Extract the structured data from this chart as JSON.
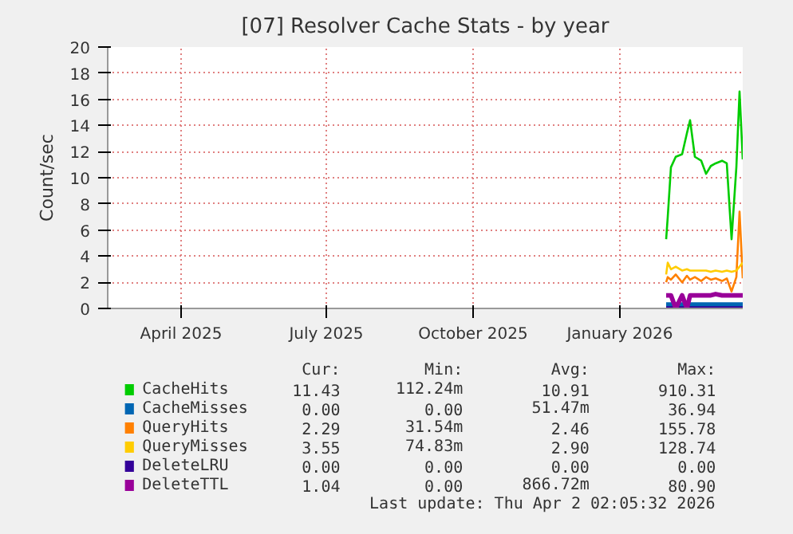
{
  "chart_data": {
    "type": "line",
    "title": "[07] Resolver Cache Stats - by year",
    "ylabel": "Count/sec",
    "x": [
      "2026-02-13",
      "2026-02-14",
      "2026-02-16",
      "2026-02-19",
      "2026-02-23",
      "2026-02-26",
      "2026-02-28",
      "2026-03-03",
      "2026-03-07",
      "2026-03-10",
      "2026-03-13",
      "2026-03-16",
      "2026-03-20",
      "2026-03-23",
      "2026-03-26",
      "2026-03-29",
      "2026-03-31",
      "2026-04-02"
    ],
    "series": [
      {
        "name": "CacheHits",
        "color": "#00cc00",
        "values": [
          5.3,
          7.0,
          10.8,
          11.6,
          11.8,
          13.4,
          14.4,
          11.6,
          11.3,
          10.3,
          10.9,
          11.1,
          11.3,
          11.1,
          5.3,
          10.8,
          16.6,
          11.4
        ]
      },
      {
        "name": "CacheMisses",
        "color": "#0066b3",
        "values": [
          0,
          0,
          0,
          0,
          0,
          0,
          0,
          0,
          0,
          0,
          0,
          0,
          0,
          0,
          0,
          0,
          0,
          0
        ]
      },
      {
        "name": "QueryHits",
        "color": "#ff8000",
        "values": [
          2.0,
          2.4,
          2.2,
          2.6,
          2.0,
          2.5,
          2.2,
          2.4,
          2.1,
          2.4,
          2.2,
          2.3,
          2.1,
          2.3,
          1.3,
          2.4,
          7.4,
          2.3
        ]
      },
      {
        "name": "QueryMisses",
        "color": "#ffcc00",
        "values": [
          2.6,
          3.5,
          3.0,
          3.2,
          2.9,
          3.0,
          2.9,
          2.9,
          2.9,
          2.9,
          2.8,
          2.9,
          2.8,
          2.9,
          2.8,
          2.9,
          3.2,
          3.5
        ]
      },
      {
        "name": "DeleteLRU",
        "color": "#330099",
        "values": [
          0,
          0,
          0,
          0,
          0,
          0,
          0,
          0,
          0,
          0,
          0,
          0,
          0,
          0,
          0,
          0,
          0,
          0
        ]
      },
      {
        "name": "DeleteTTL",
        "color": "#990099",
        "values": [
          1.0,
          1.0,
          1.0,
          0.0,
          1.0,
          0.0,
          1.0,
          1.0,
          1.0,
          1.0,
          1.0,
          1.1,
          1.0,
          1.0,
          1.0,
          1.0,
          1.0,
          1.0
        ]
      }
    ],
    "xlim": [
      "2025-02-28",
      "2026-04-02"
    ],
    "xticks": [
      {
        "value": "2025-04-15",
        "label": "April 2025"
      },
      {
        "value": "2025-07-15",
        "label": "July 2025"
      },
      {
        "value": "2025-10-15",
        "label": "October 2025"
      },
      {
        "value": "2026-01-15",
        "label": "January 2026"
      }
    ],
    "ylim": [
      0,
      20
    ],
    "yticks": [
      0,
      2,
      4,
      6,
      8,
      10,
      12,
      14,
      16,
      18,
      20
    ],
    "grid": true,
    "legend": "bottom",
    "annotations": [
      "Cur:",
      "Min:",
      "Avg:",
      "Max:",
      "11.43",
      "112.24m",
      "10.91",
      "910.31",
      "0.00",
      "0.00",
      "51.47m",
      "36.94",
      "2.29",
      "31.54m",
      "2.46",
      "155.78",
      "3.55",
      "74.83m",
      "2.90",
      "128.74",
      "0.00",
      "0.00",
      "0.00",
      "0.00",
      "1.04",
      "0.00",
      "866.72m",
      "80.90",
      "Last update: Thu Apr  2 02:05:32 2026"
    ]
  }
}
